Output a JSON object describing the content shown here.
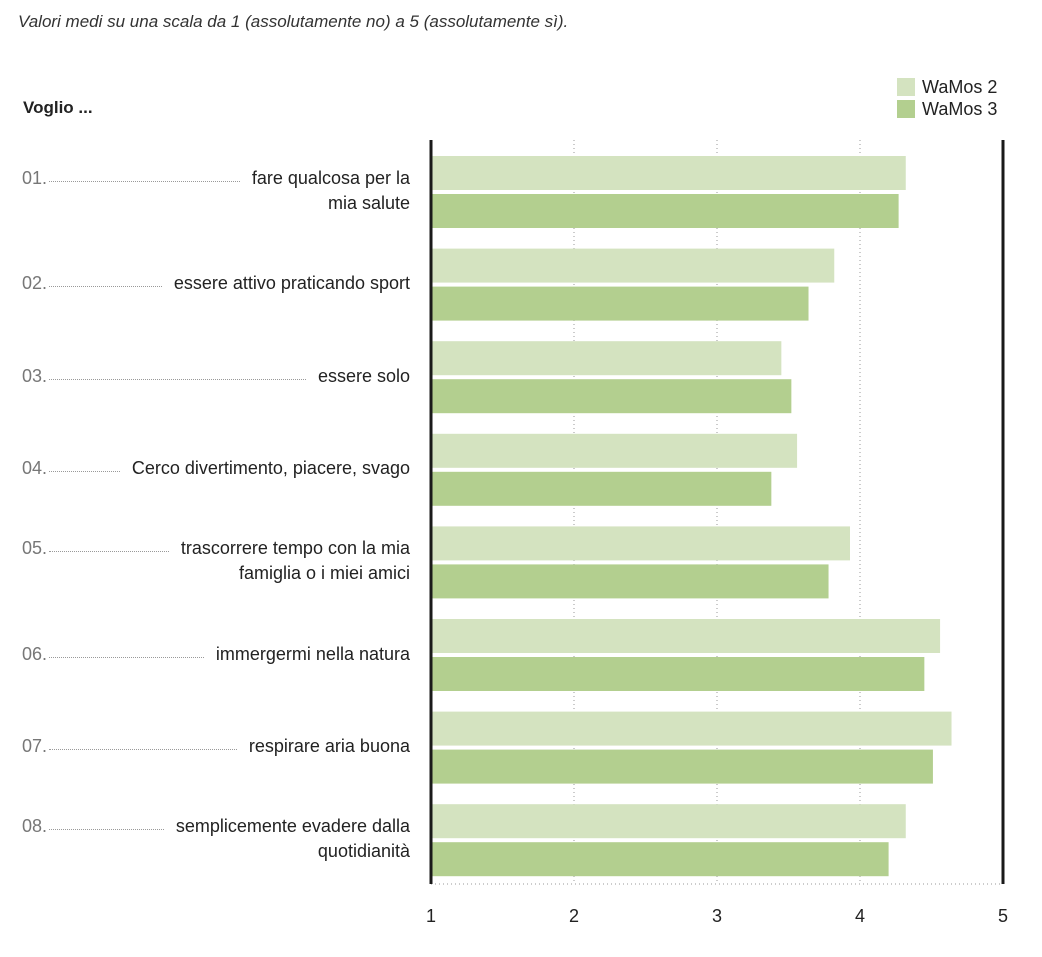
{
  "subtitle": "Valori medi su una scala da 1 (assolutamente no) a 5 (assolutamente sì).",
  "chart_data": {
    "type": "bar",
    "orientation": "horizontal",
    "title": "Voglio ...",
    "categories_numbers": [
      "01.",
      "02.",
      "03.",
      "04.",
      "05.",
      "06.",
      "07.",
      "08."
    ],
    "categories": [
      "fare qualcosa per la\nmia salute",
      "essere attivo praticando sport",
      "essere solo",
      "Cerco divertimento, piacere, svago",
      "trascorrere tempo con la mia\nfamiglia o i miei amici",
      "immergermi nella natura",
      "respirare aria buona",
      "semplicemente evadere dalla\nquotidianità"
    ],
    "series": [
      {
        "name": "WaMos 2",
        "color": "#d4e3c0",
        "values": [
          4.32,
          3.82,
          3.45,
          3.56,
          3.93,
          4.56,
          4.64,
          4.32
        ]
      },
      {
        "name": "WaMos 3",
        "color": "#b3cf8f",
        "values": [
          4.27,
          3.64,
          3.52,
          3.38,
          3.78,
          4.45,
          4.51,
          4.2
        ]
      }
    ],
    "xlim": [
      1,
      5
    ],
    "xticks": [
      "1",
      "2",
      "3",
      "4",
      "5"
    ],
    "grid": true,
    "legend": "top-right"
  }
}
